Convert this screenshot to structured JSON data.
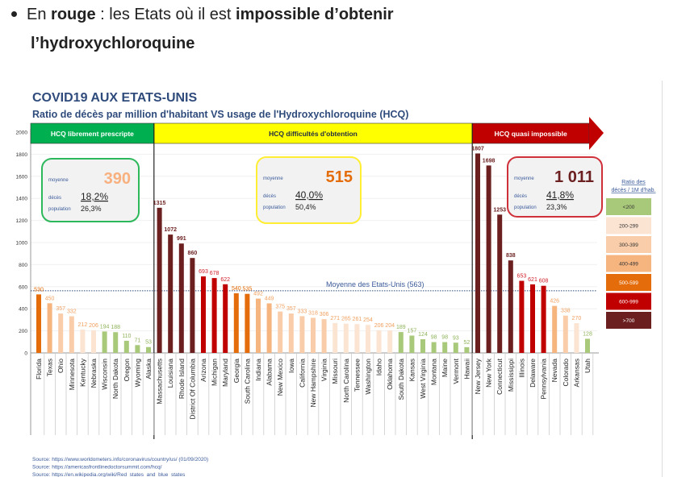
{
  "bullet": {
    "prefix": "En ",
    "bold1": "rouge",
    "mid": " : les Etats où il est ",
    "bold2": "impossible d’obtenir",
    "bold3": "l’hydroxychloroquine"
  },
  "chart_data": {
    "type": "bar",
    "title": "COVID19 AUX ETATS-UNIS",
    "subtitle": "Ratio de décès par million d'habitant    VS  usage de l'Hydroxychloroquine (HCQ)",
    "ylim": [
      0,
      2000
    ],
    "yticks": [
      0,
      200,
      400,
      600,
      800,
      1000,
      1200,
      1400,
      1600,
      1800,
      2000
    ],
    "groups": [
      {
        "label": "HCQ librement prescripte",
        "color": "#00b050",
        "text_color": "#ffffff",
        "stats": {
          "moyenne_label": "moyenne",
          "moyenne": "390",
          "deces_label": "décès",
          "deces": "18,2%",
          "population_label": "population",
          "population": "26,3%"
        },
        "box_color": "#2eb85c",
        "value_color": "#f8b07f",
        "states": [
          "Florida",
          "Texas",
          "Ohio",
          "Minnesota",
          "Kentucky",
          "Nebraska",
          "Wisconsin",
          "North Dakota",
          "Oregon",
          "Wyoming",
          "Alaska"
        ],
        "values": [
          530,
          450,
          357,
          332,
          212,
          206,
          194,
          188,
          110,
          71,
          53
        ]
      },
      {
        "label": "HCQ difficultés d'obtention",
        "color": "#ffff00",
        "text_color": "#1f2a44",
        "stats": {
          "moyenne_label": "moyenne",
          "moyenne": "515",
          "deces_label": "décès",
          "deces": "40,0%",
          "population_label": "population",
          "population": "50,4%"
        },
        "box_color": "#ffee33",
        "value_color": "#e46c0a",
        "states": [
          "Massachusetts",
          "Louisiana",
          "Rhode Island",
          "District Of Columbia",
          "Arizona",
          "Michigan",
          "Maryland",
          "Georgia",
          "South Carolina",
          "Indiana",
          "Alabama",
          "New Mexico",
          "Iowa",
          "California",
          "New Hampshire",
          "Virginia",
          "Missouri",
          "North Carolina",
          "Tennessee",
          "Washington",
          "Idaho",
          "Oklahoma",
          "South Dakota",
          "Kansas",
          "West Virginia",
          "Montana",
          "Maine",
          "Vermont",
          "Hawaii"
        ],
        "values": [
          1315,
          1072,
          991,
          860,
          693,
          678,
          622,
          540,
          535,
          492,
          449,
          375,
          357,
          333,
          318,
          306,
          271,
          265,
          261,
          254,
          206,
          204,
          189,
          157,
          124,
          98,
          98,
          93,
          52
        ]
      },
      {
        "label": "HCQ quasi impossible",
        "color": "#c00000",
        "text_color": "#ffffff",
        "stats": {
          "moyenne_label": "moyenne",
          "moyenne": "1 011",
          "deces_label": "décès",
          "deces": "41,8%",
          "population_label": "population",
          "population": "23,3%"
        },
        "box_color": "#d0303a",
        "value_color": "#6b1f1f",
        "states": [
          "New Jersey",
          "New York",
          "Connecticut",
          "Mississippi",
          "Illinois",
          "Delaware",
          "Pennsylvania",
          "Nevada",
          "Colorado",
          "Arkansas",
          "Utah"
        ],
        "values": [
          1807,
          1698,
          1253,
          838,
          653,
          621,
          608,
          426,
          338,
          270,
          128
        ]
      }
    ],
    "average": {
      "label": "Moyenne des Etats-Unis (563)",
      "value": 563
    },
    "legend": {
      "title1": "Ratio des",
      "title2": "décès / 1M d'hab.",
      "items": [
        {
          "label": "<200",
          "color": "#a9c97a",
          "text": "#333333"
        },
        {
          "label": "200-299",
          "color": "#fce4d2",
          "text": "#333333"
        },
        {
          "label": "300-399",
          "color": "#f9cda9",
          "text": "#333333"
        },
        {
          "label": "400-499",
          "color": "#f6b47f",
          "text": "#333333"
        },
        {
          "label": "500-599",
          "color": "#e46c0a",
          "text": "#ffffff"
        },
        {
          "label": "600-999",
          "color": "#c00000",
          "text": "#ffffff"
        },
        {
          "label": ">700",
          "color": "#6b1f1f",
          "text": "#ffffff"
        }
      ]
    },
    "sources": [
      "Source: https://www.worldometers.info/coronavirus/country/us/ (01/09/2020)",
      "Source: https://americasfrontlinedoctorsummit.com/hcq/",
      "Source: https://en.wikipedia.org/wiki/Red_states_and_blue_states"
    ]
  }
}
